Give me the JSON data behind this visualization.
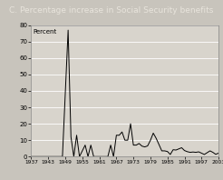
{
  "title": "C. Percentage increase in Social Security benefits",
  "ylabel": "Percent",
  "xlim": [
    1937,
    2003
  ],
  "ylim": [
    0,
    80
  ],
  "yticks": [
    0,
    10,
    20,
    30,
    40,
    50,
    60,
    70,
    80
  ],
  "xticks": [
    1937,
    1943,
    1949,
    1955,
    1961,
    1967,
    1973,
    1979,
    1985,
    1991,
    1997,
    2003
  ],
  "figure_bg_color": "#c8c4bc",
  "plot_bg_color": "#d8d4cc",
  "title_bg_color": "#4a4a4a",
  "title_text_color": "#e8e4dc",
  "line_color": "#000000",
  "grid_color": "#ffffff",
  "data": [
    [
      1937,
      0
    ],
    [
      1940,
      0
    ],
    [
      1948,
      0
    ],
    [
      1950,
      77
    ],
    [
      1951,
      12
    ],
    [
      1952,
      0
    ],
    [
      1953,
      13
    ],
    [
      1954,
      0
    ],
    [
      1956,
      7
    ],
    [
      1957,
      0
    ],
    [
      1958,
      7
    ],
    [
      1959,
      0
    ],
    [
      1960,
      0
    ],
    [
      1961,
      0
    ],
    [
      1962,
      0
    ],
    [
      1963,
      0
    ],
    [
      1964,
      0
    ],
    [
      1965,
      7
    ],
    [
      1966,
      0
    ],
    [
      1967,
      13
    ],
    [
      1968,
      13
    ],
    [
      1969,
      15
    ],
    [
      1970,
      10
    ],
    [
      1971,
      10
    ],
    [
      1972,
      20
    ],
    [
      1973,
      7
    ],
    [
      1974,
      7
    ],
    [
      1975,
      8
    ],
    [
      1976,
      6.4
    ],
    [
      1977,
      5.9
    ],
    [
      1978,
      6.5
    ],
    [
      1979,
      9.9
    ],
    [
      1980,
      14.3
    ],
    [
      1981,
      11.2
    ],
    [
      1982,
      7.4
    ],
    [
      1983,
      3.5
    ],
    [
      1984,
      3.5
    ],
    [
      1985,
      3.1
    ],
    [
      1986,
      1.3
    ],
    [
      1987,
      4.2
    ],
    [
      1988,
      4.0
    ],
    [
      1989,
      4.7
    ],
    [
      1990,
      5.4
    ],
    [
      1991,
      3.7
    ],
    [
      1992,
      3.0
    ],
    [
      1993,
      2.6
    ],
    [
      1994,
      2.8
    ],
    [
      1995,
      2.6
    ],
    [
      1996,
      2.9
    ],
    [
      1997,
      2.1
    ],
    [
      1998,
      1.3
    ],
    [
      1999,
      2.4
    ],
    [
      2000,
      3.5
    ],
    [
      2001,
      2.6
    ],
    [
      2002,
      1.4
    ],
    [
      2003,
      2.1
    ]
  ]
}
